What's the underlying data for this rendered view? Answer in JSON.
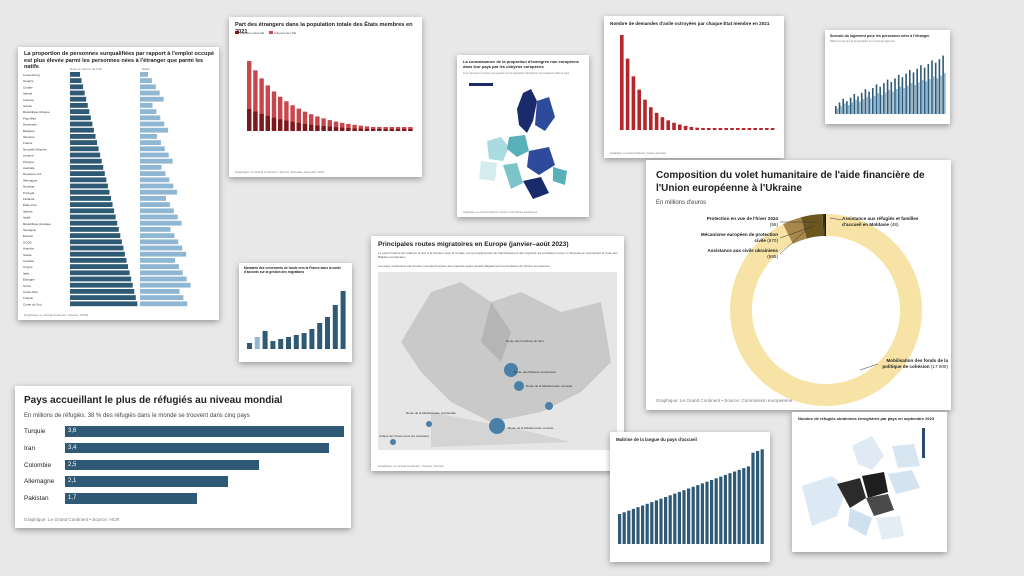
{
  "card_overqualified": {
    "title": "La proportion de personnes surqualifiées par rapport à l'emploi occupé est plus élevée parmi les personnes nées à l'étranger que parmi les natifs",
    "col_left": "Nées en dehors de l'UE",
    "col_right": "Natifs",
    "footer": "Graphique: Le Grand Continent • Source: OCDE",
    "countries": [
      "Luxembourg",
      "Hongrie",
      "Croatie",
      "Irlande",
      "Lettonie",
      "Suisse",
      "République tchèque",
      "Pays-Bas",
      "Danemark",
      "Belgique",
      "Slovénie",
      "France",
      "Nouvelle-Zélande",
      "Lituanie",
      "Pologne",
      "Australie",
      "Royaume-Uni",
      "Allemagne",
      "Norvège",
      "Portugal",
      "Finlande",
      "États-Unis",
      "Islande",
      "Israël",
      "République slovaque",
      "Slovaquie",
      "Estonie",
      "OCDE",
      "Autriche",
      "Suède",
      "Canada",
      "Chypre",
      "Italie",
      "Espagne",
      "Grèce",
      "Costa Rica",
      "Turquie",
      "Corée du Sud"
    ]
  },
  "card_foreigners": {
    "title": "Part des étrangers dans la population totale des États membres en 2021",
    "legend_a": "Citoyens extra-UE",
    "legend_b": "Citoyens de l'UE",
    "footer": "Graphique: Le Grand Continent • Source: Eurostat, décembre 2021"
  },
  "card_europeans_map": {
    "title": "La connaissance de la proportion d'immigrés non européens dans leur pays par les citoyens européens",
    "subtitle": "% de réponses correctes à la question sur la proportion d'immigrés non européens dans le pays",
    "footer": "Graphique: Le Grand Continent • Source: Commission européenne"
  },
  "card_asylum": {
    "title": "Nombre de demandes d'asile octroyées par chaque État membre en 2021",
    "footer": "Graphique: Le Grand Continent • Source: Eurostat"
  },
  "card_housing": {
    "title": "Surcoût du logement pour les personnes nées à l'étranger",
    "subtitle": "Différence de part de la population en surcoût de logement"
  },
  "card_routes": {
    "title": "Principales routes migratoires en Europe (janvier–août 2023)",
    "text1": "Le point frontière de Grabovo et Sid, à la frontière avec la Croatie, est le principal point de franchissement des migrants qui souhaitent entrer en Slovénie en empruntant la route des Balkans occidentaux.",
    "text2": "Les pays mentionnés par Frontex comptent l'origine des migrants ayant pénétré illégalement les frontières de l'Union européenne.",
    "footer": "Graphique: Le Grand Continent • Source: Frontex",
    "labels": [
      "Route des frontières de l'Est",
      "Route des Balkans occidentaux",
      "Route de la Méditerranée orientale",
      "Route de la Méditerranée occidentale",
      "Route de la Méditerranée centrale",
      "Afrique de l'Ouest (vers les Canaries)"
    ]
  },
  "card_workers": {
    "title": "Montants des versements de fonds vers la France dans la sortie d'accords sur la gestion des migrations"
  },
  "card_ukraine_aid": {
    "title": "Composition du volet humanitaire de l'aide financière de l'Union européenne à l'Ukraine",
    "subtitle": "En millions d'euros",
    "footer": "Graphique: Le Grand Continent • Source: Commission européenne",
    "labels": {
      "winter": "Protection en vue de l'hiver 2024",
      "winter_val": "(55)",
      "civil": "Mécanisme européen de protection civile",
      "civil_val": "(670)",
      "civilians": "Assistance aux civils ukrainiens",
      "civilians_val": "(585)",
      "refugees": "Assistance aux réfugiés et familles d'accueil en Moldavie",
      "refugees_val": "(48)",
      "cohesion": "Mobilisation des fonds de la politique de cohésion",
      "cohesion_val": "(17 000)"
    }
  },
  "card_refugees": {
    "title": "Pays accueillant le plus de réfugiés au niveau mondial",
    "subtitle": "En millions de réfugiés. 38 % des réfugiés dans le monde se trouvent dans cinq pays",
    "footer": "Graphique: Le Grand Continent • Source: HCR"
  },
  "card_language": {
    "title": "Maîtrise de la langue du pays d'accueil"
  },
  "card_ukr_map": {
    "title": "Nombre de réfugiés ukrainiens enregistrés par pays en septembre 2023"
  },
  "chart_data": [
    {
      "type": "bar",
      "title": "Pays accueillant le plus de réfugiés au niveau mondial",
      "categories": [
        "Turquie",
        "Iran",
        "Colombie",
        "Allemagne",
        "Pakistan"
      ],
      "values": [
        3.6,
        3.4,
        2.5,
        2.1,
        1.7
      ],
      "value_labels": [
        "3,6",
        "3,4",
        "2,5",
        "2,1",
        "1,7"
      ],
      "orientation": "horizontal",
      "xlim": [
        0,
        3.6
      ],
      "color": "#2f5a75"
    },
    {
      "type": "pie",
      "title": "Composition du volet humanitaire de l'aide financière de l'Union européenne à l'Ukraine",
      "categories": [
        "Mobilisation des fonds de la politique de cohésion",
        "Assistance aux civils ukrainiens",
        "Mécanisme européen de protection civile",
        "Protection en vue de l'hiver 2024",
        "Assistance aux réfugiés et familles d'accueil en Moldavie"
      ],
      "values": [
        17000,
        585,
        670,
        55,
        48
      ],
      "colors": [
        "#f7e3a6",
        "#a8874a",
        "#6b5620",
        "#3b2f12",
        "#1f1808"
      ],
      "donut": true
    }
  ],
  "colors": {
    "dark_blue": "#2f5a75",
    "light_blue": "#8fb7d3",
    "dark_red": "#7a1a1e",
    "red": "#c8474b",
    "cream": "#f7e3a6"
  }
}
